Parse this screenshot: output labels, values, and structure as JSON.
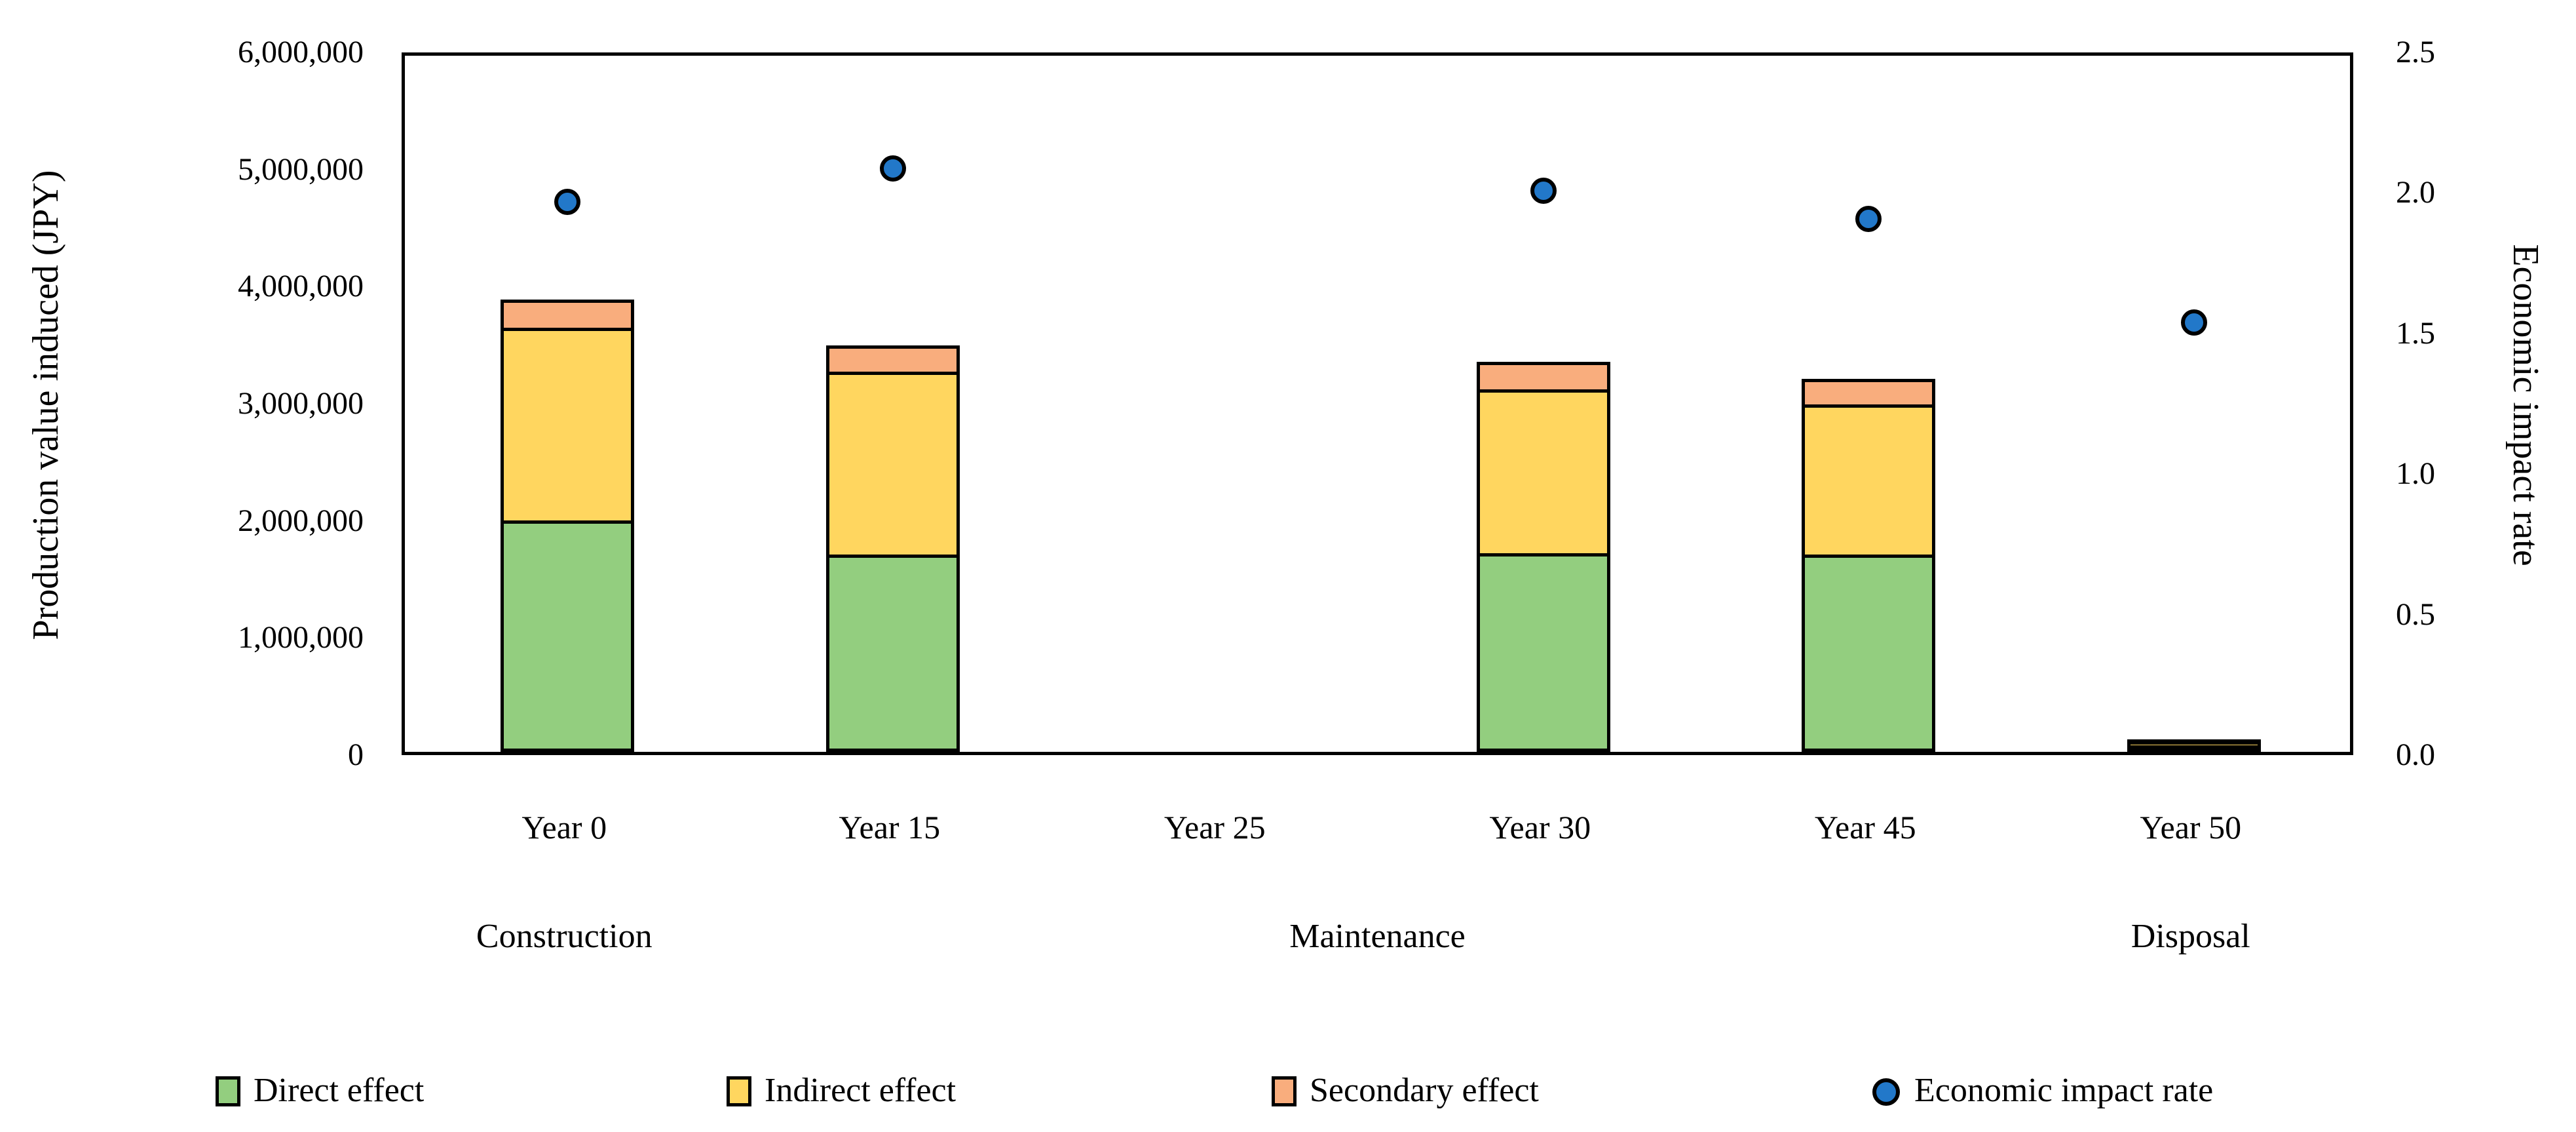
{
  "chart_data": {
    "type": "combo-stacked-bar-scatter",
    "categories": [
      "Year 0",
      "Year 15",
      "Year 25",
      "Year 30",
      "Year 45",
      "Year 50"
    ],
    "phase_groups": [
      {
        "label": "Construction",
        "from": 0,
        "to": 0
      },
      {
        "label": "Maintenance",
        "from": 1,
        "to": 4
      },
      {
        "label": "Disposal",
        "from": 5,
        "to": 5
      }
    ],
    "left_axis": {
      "title": "Production value induced (JPY)",
      "min": 0,
      "max": 6000000,
      "step": 1000000,
      "tick_labels": [
        "0",
        "1,000,000",
        "2,000,000",
        "3,000,000",
        "4,000,000",
        "5,000,000",
        "6,000,000"
      ]
    },
    "right_axis": {
      "title": "Economic impact rate",
      "min": 0,
      "max": 2.5,
      "step": 0.5,
      "tick_labels": [
        "0.0",
        "0.5",
        "1.0",
        "1.5",
        "2.0",
        "2.5"
      ]
    },
    "series": [
      {
        "name": "Direct effect",
        "type": "bar",
        "axis": "left",
        "color": "#93CE7F",
        "values": [
          1960000,
          1670000,
          0,
          1680000,
          1670000,
          40000
        ]
      },
      {
        "name": "Indirect effect",
        "type": "bar",
        "axis": "left",
        "color": "#FFD65F",
        "values": [
          1650000,
          1560000,
          0,
          1400000,
          1280000,
          35000
        ]
      },
      {
        "name": "Secondary effect",
        "type": "bar",
        "axis": "left",
        "color": "#F9AD7D",
        "values": [
          250000,
          240000,
          0,
          250000,
          235000,
          30000
        ]
      },
      {
        "name": "Economic impact rate",
        "type": "scatter",
        "axis": "right",
        "color": "#2278C9",
        "values": [
          1.98,
          2.1,
          null,
          2.02,
          1.92,
          1.55
        ]
      }
    ],
    "bar_outline_color": "#000000",
    "legend": {
      "position": "bottom",
      "items": [
        "Direct effect",
        "Indirect effect",
        "Secondary effect",
        "Economic impact rate"
      ]
    },
    "grid": false
  }
}
